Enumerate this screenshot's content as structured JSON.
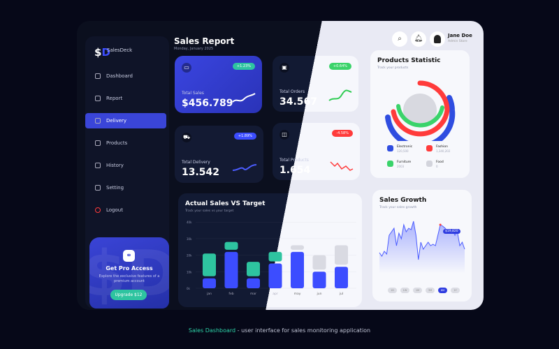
{
  "brand": {
    "logo": "$D",
    "name": "SalesDeck"
  },
  "sidebar": {
    "items": [
      {
        "label": "Dashboard",
        "icon": "dashboard-icon"
      },
      {
        "label": "Report",
        "icon": "report-icon"
      },
      {
        "label": "Delivery",
        "icon": "delivery-icon",
        "active": true
      },
      {
        "label": "Products",
        "icon": "products-icon"
      },
      {
        "label": "History",
        "icon": "history-icon"
      },
      {
        "label": "Setting",
        "icon": "gear-icon"
      },
      {
        "label": "Logout",
        "icon": "power-icon"
      }
    ]
  },
  "pro": {
    "title": "Get Pro Access",
    "desc": "Explore the exclusive features of a premium account",
    "button": "Upgrade $12"
  },
  "header": {
    "title": "Sales Report",
    "date": "Monday, January 2025",
    "user": {
      "name": "Jane Doe",
      "role": "Admin Store"
    }
  },
  "stats": [
    {
      "label": "Total Sales",
      "value": "$456.789",
      "badge": "+1.23%",
      "badge_color": "#2ec4a0"
    },
    {
      "label": "Total Orders",
      "value": "34.567",
      "badge": "+0.64%",
      "badge_color": "#3ad36a"
    },
    {
      "label": "Total Delivery",
      "value": "13.542",
      "badge": "+1.89%",
      "badge_color": "#3c4dff"
    },
    {
      "label": "Total Products",
      "value": "1.654",
      "badge": "-4.58%",
      "badge_color": "#ff3b3b"
    }
  ],
  "actual_vs_target": {
    "title": "Actual Sales VS Target",
    "subtitle": "Track your sales vs your target",
    "chart_data": {
      "type": "bar",
      "categories": [
        "jan",
        "feb",
        "mar",
        "apr",
        "may",
        "jun",
        "jul"
      ],
      "y_ticks": [
        "0k",
        "10k",
        "20k",
        "30k",
        "40k"
      ],
      "ylim": [
        0,
        40
      ],
      "series": [
        {
          "values": [
            6,
            22,
            6,
            15,
            22,
            10,
            13
          ],
          "color": "#3c4dff"
        },
        {
          "values": [
            21,
            28,
            16,
            22,
            26,
            20,
            26
          ],
          "color": "#2ec4a0"
        }
      ]
    }
  },
  "products_statistic": {
    "title": "Products Statistic",
    "subtitle": "Track your products",
    "legend": [
      {
        "name": "Electronic",
        "value": "120,500",
        "color": "#2f4de0"
      },
      {
        "name": "Fashion",
        "value": "1,340,202",
        "color": "#ff3b3b"
      },
      {
        "name": "Furniture",
        "value": "2003",
        "color": "#3ad36a"
      },
      {
        "name": "Food",
        "value": "0",
        "color": "#d3d4dc"
      }
    ]
  },
  "sales_growth": {
    "title": "Sales Growth",
    "subtitle": "Track your sales growth",
    "tooltip": "$19,820",
    "ranges": [
      "1D",
      "1W",
      "1M",
      "3M",
      "6M",
      "1Y"
    ],
    "selected": "6M",
    "chart_data": {
      "type": "area",
      "values": [
        20,
        15,
        22,
        18,
        45,
        50,
        55,
        30,
        48,
        40,
        60,
        50,
        55,
        53,
        65,
        45,
        10,
        35,
        25,
        30,
        35,
        30,
        32,
        30,
        45,
        60,
        58,
        55,
        50,
        48,
        52,
        45,
        50,
        30,
        35,
        25
      ]
    }
  },
  "caption": {
    "highlight": "Sales Dashboard",
    "rest": " - user interface for sales monitoring application"
  }
}
